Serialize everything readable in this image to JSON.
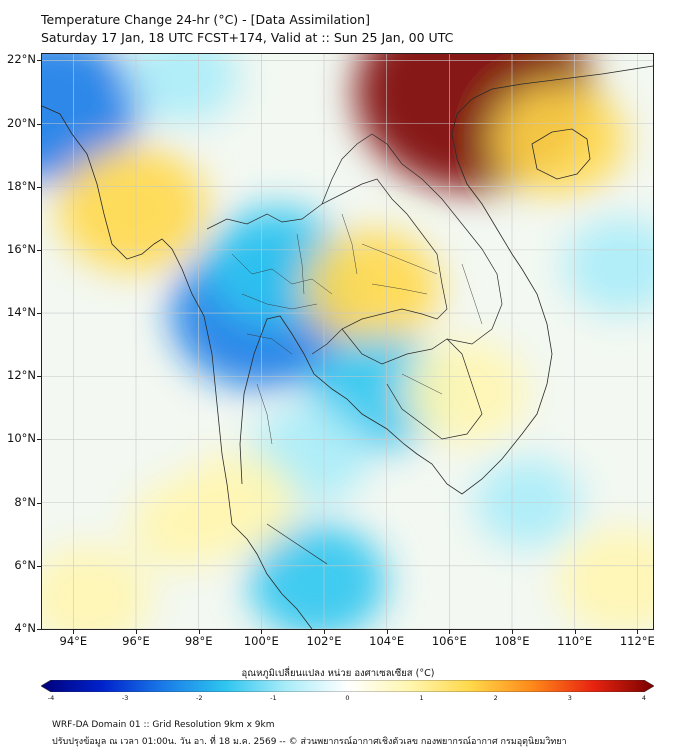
{
  "title_line1": "Temperature Change 24-hr (°C) - [Data Assimilation]",
  "title_line2": "Saturday 17 Jan, 18 UTC FCST+174, Valid at :: Sun 25 Jan, 00 UTC",
  "map": {
    "lon_range": [
      93,
      112.5
    ],
    "lat_range": [
      4,
      22.2
    ],
    "lat_labels": [
      "22°N",
      "20°N",
      "18°N",
      "16°N",
      "14°N",
      "12°N",
      "10°N",
      "8°N",
      "6°N",
      "4°N"
    ],
    "lon_labels": [
      "94°E",
      "96°E",
      "98°E",
      "100°E",
      "102°E",
      "104°E",
      "106°E",
      "108°E",
      "110°E",
      "112°E"
    ],
    "regions": [
      {
        "name": "cooling-yangon",
        "lon": 93.3,
        "lat": 20.5,
        "level": -2.2
      },
      {
        "name": "warming-myanmar-coast",
        "lon": 95.9,
        "lat": 17.3,
        "level": 1.6
      },
      {
        "name": "warming-south-china",
        "lon": 106.8,
        "lat": 21.0,
        "level": 3.6
      },
      {
        "name": "warming-hainan-coast",
        "lon": 109.5,
        "lat": 19.5,
        "level": 1.2
      },
      {
        "name": "cooling-bangkok",
        "lon": 100.0,
        "lat": 14.0,
        "level": -2.3
      },
      {
        "name": "cooling-central-thailand",
        "lon": 100.5,
        "lat": 15.5,
        "level": -1.4
      },
      {
        "name": "warming-northeast-thailand",
        "lon": 103.5,
        "lat": 14.8,
        "level": 1.3
      },
      {
        "name": "cooling-cambodia",
        "lon": 103.8,
        "lat": 11.5,
        "level": -1.3
      },
      {
        "name": "warming-south-vietnam",
        "lon": 106.5,
        "lat": 11.5,
        "level": 1.0
      },
      {
        "name": "cooling-gulf",
        "lon": 101.5,
        "lat": 9.5,
        "level": -0.9
      },
      {
        "name": "cooling-peninsula",
        "lon": 101.8,
        "lat": 5.5,
        "level": -1.3
      },
      {
        "name": "warming-peninsula",
        "lon": 99.2,
        "lat": 8.0,
        "level": 0.9
      },
      {
        "name": "warming-sw-sea",
        "lon": 94.5,
        "lat": 5.0,
        "level": 1.0
      },
      {
        "name": "warming-andaman",
        "lon": 97.5,
        "lat": 7.3,
        "level": 0.6
      },
      {
        "name": "cooling-south-china-sea",
        "lon": 108.5,
        "lat": 8.0,
        "level": -0.6
      },
      {
        "name": "cooling-east-sea",
        "lon": 111.5,
        "lat": 15.5,
        "level": -0.8
      },
      {
        "name": "warming-se-corner",
        "lon": 111.5,
        "lat": 5.5,
        "level": 1.1
      },
      {
        "name": "cooling-north-myanmar",
        "lon": 97.5,
        "lat": 21.5,
        "level": -0.7
      }
    ]
  },
  "colorbar": {
    "title": "อุณหภูมิเปลี่ยนแปลง หน่วย องศาเซลเซียส (°C)",
    "min": -4,
    "max": 4,
    "tick_labels": [
      "-4",
      "-3",
      "-2",
      "-1",
      "0",
      "1",
      "2",
      "3",
      "4"
    ],
    "colors": [
      "#00007a",
      "#0022cc",
      "#1a7be8",
      "#2ec5f0",
      "#a9ecf8",
      "#ffffff",
      "#fff6b0",
      "#ffd84a",
      "#ff8a1a",
      "#e82410",
      "#7a0000"
    ]
  },
  "footer_line1": "WRF-DA Domain 01 :: Grid Resolution 9km x 9km",
  "footer_line2": "ปรับปรุงข้อมูล ณ เวลา 01:00น. วัน อา. ที่ 18 ม.ค. 2569 -- © ส่วนพยากรณ์อากาศเชิงตัวเลข กองพยากรณ์อากาศ กรมอุตุนิยมวิทยา"
}
